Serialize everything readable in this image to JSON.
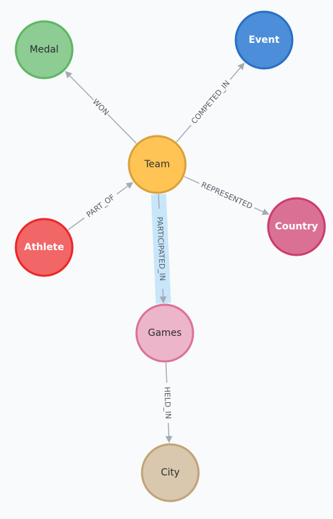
{
  "graph": {
    "nodes": [
      {
        "id": "team",
        "label": "Team",
        "fill": "#ffc454",
        "stroke": "#d9a13c",
        "text": "#333333"
      },
      {
        "id": "medal",
        "label": "Medal",
        "fill": "#8dcc93",
        "stroke": "#5db665",
        "text": "#2a2c34"
      },
      {
        "id": "event",
        "label": "Event",
        "fill": "#4c8eda",
        "stroke": "#2870c2",
        "text": "#ffffff"
      },
      {
        "id": "athlete",
        "label": "Athlete",
        "fill": "#f16667",
        "stroke": "#eb2728",
        "text": "#ffffff"
      },
      {
        "id": "country",
        "label": "Country",
        "fill": "#da7194",
        "stroke": "#cc3c6c",
        "text": "#ffffff"
      },
      {
        "id": "games",
        "label": "Games",
        "fill": "#ecb5c9",
        "stroke": "#da7298",
        "text": "#2a2c34"
      },
      {
        "id": "city",
        "label": "City",
        "fill": "#d9c8ae",
        "stroke": "#c0a378",
        "text": "#2a2c34"
      }
    ],
    "relationships": [
      {
        "id": "won",
        "from": "team",
        "to": "medal",
        "label": "WON",
        "highlighted": false
      },
      {
        "id": "competed_in",
        "from": "team",
        "to": "event",
        "label": "COMPETED_IN",
        "highlighted": false
      },
      {
        "id": "part_of",
        "from": "athlete",
        "to": "team",
        "label": "PART_OF",
        "highlighted": false
      },
      {
        "id": "represented",
        "from": "team",
        "to": "country",
        "label": "REPRESENTED",
        "highlighted": false
      },
      {
        "id": "participated_in",
        "from": "team",
        "to": "games",
        "label": "PARTICIPATED_IN",
        "highlighted": true
      },
      {
        "id": "held_in",
        "from": "games",
        "to": "city",
        "label": "HELD_IN",
        "highlighted": false
      }
    ]
  }
}
